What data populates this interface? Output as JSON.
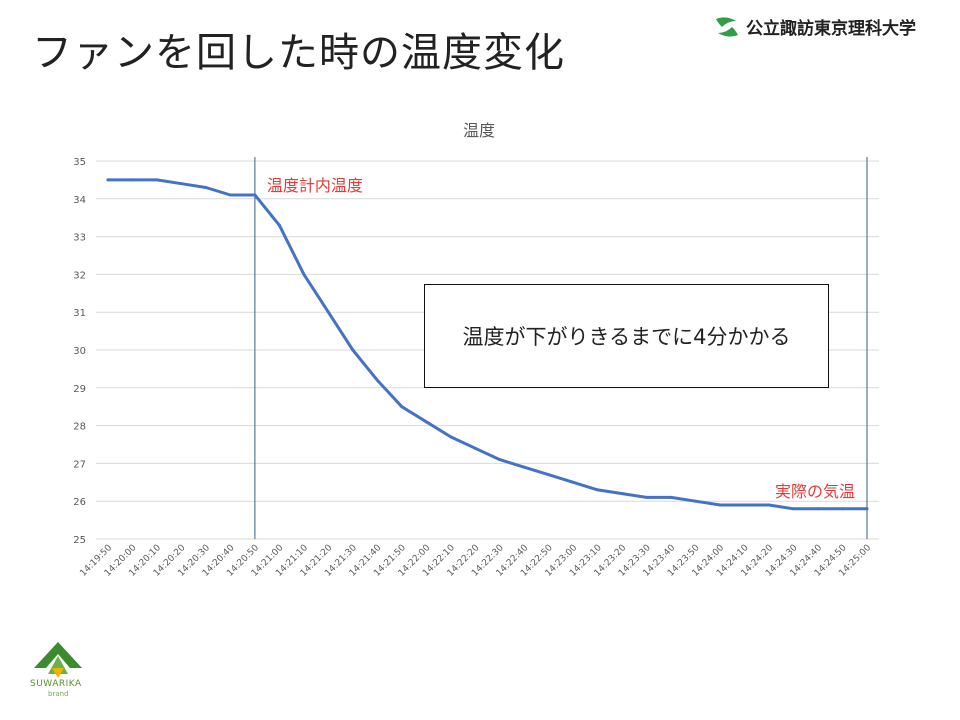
{
  "slide": {
    "title": "ファンを回した時の温度変化",
    "university": "公立諏訪東京理科大学",
    "callout": "温度が下がりきるまでに4分かかる",
    "brand": "SUWARIKA",
    "brand_sub": "brand"
  },
  "colors": {
    "line": "#4472c4",
    "marker": "#2e5f91",
    "label": "#e63b3b",
    "grid": "#d9d9d9",
    "axis_text": "#595959"
  },
  "chart_data": {
    "type": "line",
    "title": "温度",
    "categories": [
      "14:19:50",
      "14:20:00",
      "14:20:10",
      "14:20:20",
      "14:20:30",
      "14:20:40",
      "14:20:50",
      "14:21:00",
      "14:21:10",
      "14:21:20",
      "14:21:30",
      "14:21:40",
      "14:21:50",
      "14:22:00",
      "14:22:10",
      "14:22:20",
      "14:22:30",
      "14:22:40",
      "14:22:50",
      "14:23:00",
      "14:23:10",
      "14:23:20",
      "14:23:30",
      "14:23:40",
      "14:23:50",
      "14:24:00",
      "14:24:10",
      "14:24:20",
      "14:24:30",
      "14:24:40",
      "14:24:50",
      "14:25:00"
    ],
    "series": [
      {
        "values": [
          34.5,
          34.5,
          34.5,
          34.4,
          34.3,
          34.1,
          34.1,
          33.3,
          32.0,
          31.0,
          30.0,
          29.2,
          28.5,
          28.1,
          27.7,
          27.4,
          27.1,
          26.9,
          26.7,
          26.5,
          26.3,
          26.2,
          26.1,
          26.1,
          26.0,
          25.9,
          25.9,
          25.9,
          25.8,
          25.8,
          25.8,
          25.8
        ]
      }
    ],
    "ylim": [
      25,
      35
    ],
    "yticks": [
      25,
      26,
      27,
      28,
      29,
      30,
      31,
      32,
      33,
      34,
      35
    ],
    "grid": true,
    "annotations": [
      {
        "text": "温度計内温度",
        "at": "14:20:50"
      },
      {
        "text": "実際の気温",
        "at": "14:25:00"
      }
    ]
  }
}
